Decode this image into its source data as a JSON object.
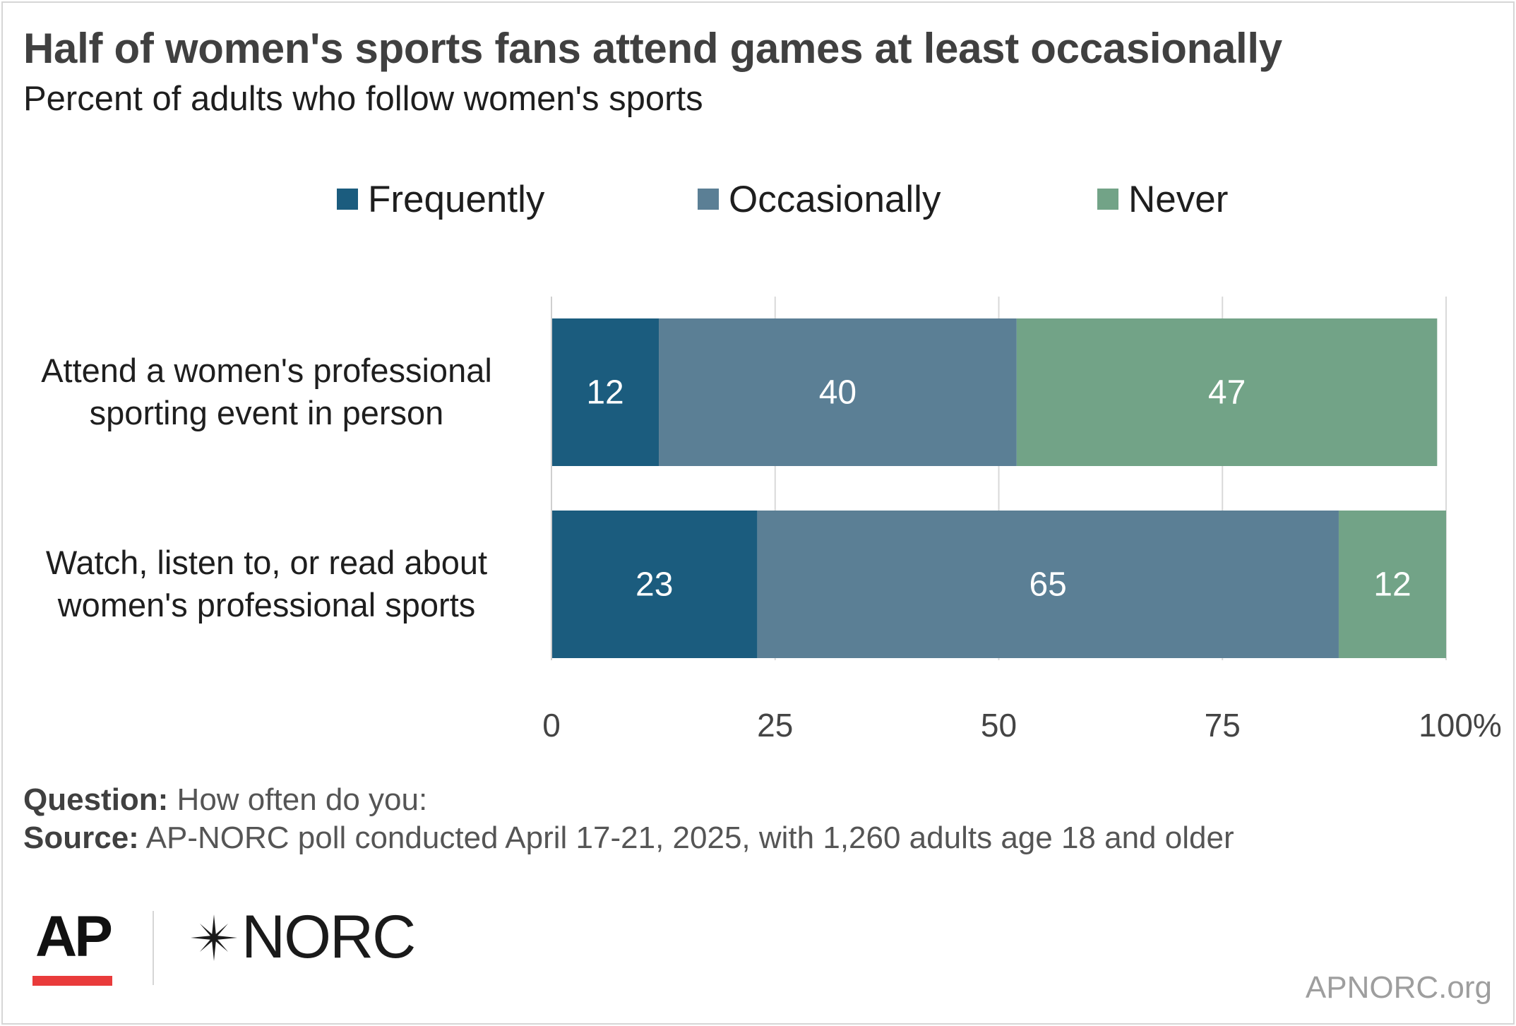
{
  "title": "Half of women's sports fans attend games at least occasionally",
  "subtitle": "Percent of adults who follow women's sports",
  "legend": [
    {
      "label": "Frequently",
      "color": "#1b5c7e"
    },
    {
      "label": "Occasionally",
      "color": "#5b7f95"
    },
    {
      "label": "Never",
      "color": "#72a387"
    }
  ],
  "categories": [
    {
      "line1": "Attend a women's professional",
      "line2": "sporting event in person"
    },
    {
      "line1": "Watch, listen to, or read about",
      "line2": "women's professional sports"
    }
  ],
  "chart_data": {
    "type": "bar",
    "orientation": "horizontal",
    "stacked": true,
    "categories": [
      "Attend a women's professional sporting event in person",
      "Watch, listen to, or read about women's professional sports"
    ],
    "series": [
      {
        "name": "Frequently",
        "values": [
          12,
          23
        ],
        "color": "#1b5c7e"
      },
      {
        "name": "Occasionally",
        "values": [
          40,
          65
        ],
        "color": "#5b7f95"
      },
      {
        "name": "Never",
        "values": [
          47,
          12
        ],
        "color": "#72a387"
      }
    ],
    "xlim": [
      0,
      100
    ],
    "xticks": [
      0,
      25,
      50,
      75,
      100
    ],
    "xtick_labels": [
      "0",
      "25",
      "50",
      "75",
      "100%"
    ],
    "grid": true,
    "legend_position": "top"
  },
  "notes": {
    "question_label": "Question:",
    "question_text": " How often do you:",
    "source_label": "Source:",
    "source_text": " AP-NORC poll conducted April 17-21, 2025, with 1,260 adults age 18 and older"
  },
  "logos": {
    "ap": "AP",
    "norc": "NORC",
    "site": "APNORC.org"
  }
}
